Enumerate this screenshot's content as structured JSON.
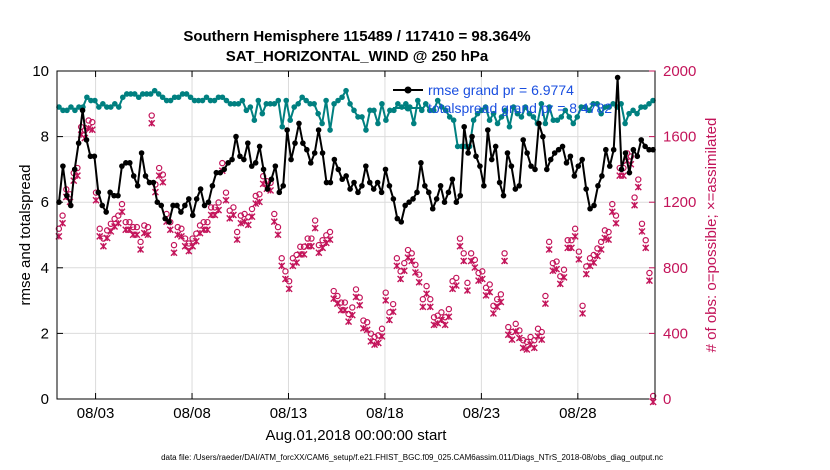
{
  "chart_data": {
    "type": "line",
    "title_line1": "Southern Hemisphere 115489 / 117410 = 98.364%",
    "title_line2": "SAT_HORIZONTAL_WIND @ 250 hPa",
    "ylabel_left": "rmse and totalspread",
    "ylabel_right": "# of obs: o=possible; ×=assimilated",
    "xlabel": "Aug.01,2018 00:00:00 start",
    "footer": "data file: /Users/raeder/DAI/ATM_forcXX/CAM6_setup/f.e21.FHIST_BGC.f09_025.CAM6assim.011/Diags_NTrS_2018-08/obs_diag_output.nc",
    "x_ticks": [
      {
        "day": 3,
        "label": "08/03"
      },
      {
        "day": 8,
        "label": "08/08"
      },
      {
        "day": 13,
        "label": "08/13"
      },
      {
        "day": 18,
        "label": "08/18"
      },
      {
        "day": 23,
        "label": "08/23"
      },
      {
        "day": 28,
        "label": "08/28"
      }
    ],
    "xlim": [
      1,
      32
    ],
    "ylim_left": [
      0,
      10
    ],
    "ylim_right": [
      0,
      2000
    ],
    "yticks_left": [
      "0",
      "2",
      "4",
      "6",
      "8",
      "10"
    ],
    "yticks_right": [
      "0",
      "400",
      "800",
      "1200",
      "1600",
      "2000"
    ],
    "legend_position": "top-right",
    "colors": {
      "rmse": "#000000",
      "totalspread": "#008080",
      "obs": "#c3145a",
      "legend_text": "#1a4fe0"
    },
    "series": [
      {
        "name": "rmse grand pr = 6.9774",
        "axis": "left",
        "color": "#000000",
        "marker": "filled-circle",
        "values": [
          6.0,
          7.1,
          6.2,
          5.9,
          7.0,
          7.8,
          8.8,
          7.9,
          7.4,
          7.4,
          6.3,
          5.9,
          5.7,
          6.3,
          6.2,
          6.2,
          7.1,
          7.2,
          7.2,
          6.8,
          6.5,
          7.5,
          6.8,
          6.6,
          6.6,
          6.0,
          5.9,
          5.5,
          5.4,
          5.9,
          5.9,
          5.7,
          5.9,
          6.1,
          5.6,
          6.1,
          6.4,
          5.9,
          6.0,
          6.5,
          6.9,
          6.9,
          7.0,
          7.2,
          7.3,
          8.0,
          7.4,
          7.3,
          7.8,
          7.1,
          7.2,
          7.7,
          7.0,
          6.4,
          6.7,
          7.1,
          6.3,
          6.5,
          8.2,
          7.3,
          7.8,
          8.4,
          7.8,
          7.6,
          7.2,
          7.5,
          8.2,
          7.5,
          6.6,
          6.6,
          7.3,
          7.0,
          6.7,
          6.8,
          6.4,
          6.6,
          6.3,
          6.5,
          7.1,
          6.6,
          6.4,
          6.6,
          6.3,
          7.0,
          6.5,
          6.1,
          5.5,
          5.4,
          5.9,
          6.0,
          6.1,
          6.3,
          7.2,
          6.5,
          6.3,
          5.8,
          6.1,
          6.5,
          6.0,
          6.3,
          6.7,
          6.0,
          6.2,
          8.3,
          7.5,
          8.0,
          7.4,
          7.1,
          6.5,
          8.2,
          7.3,
          7.7,
          6.6,
          6.2,
          7.5,
          7.1,
          6.4,
          6.5,
          7.9,
          7.5,
          7.1,
          7.0,
          8.4,
          8.0,
          7.0,
          7.3,
          7.5,
          7.6,
          7.7,
          7.2,
          7.4,
          6.8,
          7.1,
          7.3,
          6.4,
          5.8,
          5.9,
          6.5,
          6.8,
          7.6,
          7.1,
          7.6,
          9.8,
          7.0,
          7.5,
          6.9,
          7.6,
          7.4,
          7.9,
          7.7,
          7.6,
          7.6
        ]
      },
      {
        "name": "totalspread grand pr = 8.4782",
        "axis": "left",
        "color": "#008080",
        "marker": "filled-circle",
        "values": [
          8.9,
          8.8,
          8.8,
          8.9,
          8.8,
          8.9,
          8.9,
          9.2,
          9.1,
          9.1,
          8.9,
          9.0,
          8.9,
          8.9,
          9.0,
          8.9,
          9.2,
          9.3,
          9.3,
          9.3,
          9.2,
          9.3,
          9.3,
          9.3,
          9.4,
          9.3,
          9.2,
          9.1,
          9.1,
          9.2,
          9.2,
          9.3,
          9.3,
          9.2,
          9.1,
          9.1,
          9.1,
          9.2,
          9.1,
          9.1,
          9.2,
          9.2,
          9.1,
          9.0,
          9.0,
          9.0,
          9.1,
          8.8,
          8.9,
          8.5,
          9.1,
          8.7,
          9.0,
          9.0,
          9.0,
          9.1,
          8.3,
          9.1,
          8.5,
          8.9,
          9.0,
          9.2,
          9.1,
          9.0,
          9.0,
          8.7,
          8.4,
          9.1,
          8.2,
          9.0,
          9.1,
          9.2,
          9.4,
          9.0,
          8.8,
          8.6,
          8.6,
          8.2,
          8.8,
          8.8,
          8.4,
          9.0,
          8.5,
          8.8,
          8.8,
          9.0,
          8.9,
          9.0,
          8.9,
          8.4,
          9.1,
          8.8,
          9.0,
          8.8,
          8.8,
          9.1,
          8.9,
          8.8,
          8.6,
          8.5,
          7.7,
          7.7,
          7.7,
          7.7,
          8.5,
          8.7,
          8.8,
          8.9,
          8.5,
          8.7,
          8.4,
          8.6,
          8.8,
          8.3,
          8.9,
          8.7,
          8.6,
          8.9,
          8.7,
          8.6,
          8.4,
          9.0,
          8.4,
          8.9,
          8.5,
          8.5,
          8.6,
          8.8,
          8.6,
          8.4,
          8.6,
          8.9,
          8.9,
          8.8,
          9.0,
          9.0,
          8.7,
          8.9,
          8.9,
          9.0,
          8.9,
          9.0,
          8.4,
          8.7,
          8.8,
          8.7,
          8.9,
          8.9,
          9.0,
          9.1
        ]
      },
      {
        "name": "possible",
        "axis": "right",
        "color": "#c3145a",
        "marker": "open-circle",
        "values": [
          1020,
          1100,
          1260,
          1230,
          1360,
          1390,
          1640,
          1620,
          1680,
          1670,
          1240,
          1020,
          960,
          1010,
          1050,
          1080,
          1100,
          1170,
          1060,
          1060,
          1030,
          1030,
          940,
          1040,
          1030,
          1710,
          1290,
          1390,
          1350,
          1110,
          1060,
          920,
          1030,
          1020,
          960,
          930,
          960,
          990,
          1040,
          1060,
          1060,
          1150,
          1150,
          1180,
          1420,
          1240,
          1130,
          1150,
          1000,
          1100,
          1110,
          1090,
          1140,
          1220,
          1230,
          1340,
          1310,
          1300,
          1110,
          1030,
          840,
          760,
          700,
          840,
          860,
          910,
          910,
          960,
          960,
          1070,
          920,
          950,
          980,
          1000,
          640,
          610,
          570,
          570,
          500,
          540,
          650,
          600,
          460,
          450,
          380,
          360,
          370,
          410,
          630,
          510,
          560,
          840,
          760,
          810,
          890,
          870,
          800,
          740,
          590,
          670,
          590,
          480,
          490,
          510,
          480,
          530,
          700,
          720,
          960,
          870,
          690,
          870,
          830,
          750,
          760,
          660,
          680,
          550,
          590,
          620,
          870,
          420,
          390,
          440,
          400,
          340,
          330,
          360,
          340,
          410,
          390,
          610,
          940,
          810,
          820,
          730,
          770,
          950,
          950,
          1020,
          880,
          550,
          790,
          840,
          860,
          900,
          940,
          1010,
          1000,
          1170,
          1100,
          1390,
          1390,
          1480,
          1460,
          1210,
          1320,
          1050,
          950,
          750,
          0
        ]
      },
      {
        "name": "assimilated",
        "axis": "right",
        "color": "#c3145a",
        "marker": "x",
        "values": [
          1010,
          1090,
          1250,
          1220,
          1350,
          1380,
          1630,
          1610,
          1670,
          1660,
          1230,
          1010,
          950,
          1000,
          1040,
          1070,
          1090,
          1160,
          1050,
          1050,
          1020,
          1020,
          930,
          1030,
          1020,
          1700,
          1280,
          1380,
          1340,
          1100,
          1050,
          910,
          1020,
          1010,
          950,
          920,
          950,
          980,
          1030,
          1050,
          1050,
          1140,
          1140,
          1170,
          1410,
          1230,
          1120,
          1140,
          990,
          1090,
          1100,
          1080,
          1130,
          1210,
          1220,
          1330,
          1300,
          1290,
          1100,
          1020,
          830,
          750,
          690,
          830,
          850,
          900,
          900,
          950,
          950,
          1060,
          910,
          940,
          970,
          990,
          630,
          600,
          560,
          560,
          490,
          530,
          640,
          590,
          450,
          440,
          370,
          350,
          360,
          400,
          620,
          500,
          550,
          830,
          750,
          800,
          880,
          860,
          790,
          730,
          580,
          660,
          580,
          470,
          480,
          500,
          470,
          520,
          690,
          710,
          950,
          860,
          680,
          860,
          820,
          740,
          750,
          650,
          670,
          540,
          580,
          610,
          860,
          410,
          380,
          430,
          390,
          330,
          320,
          350,
          330,
          400,
          380,
          600,
          930,
          800,
          810,
          720,
          760,
          940,
          940,
          1010,
          870,
          540,
          780,
          830,
          850,
          890,
          930,
          1000,
          990,
          1160,
          1090,
          1380,
          1380,
          1470,
          1450,
          1200,
          1310,
          1040,
          940,
          740,
          0
        ]
      }
    ]
  }
}
